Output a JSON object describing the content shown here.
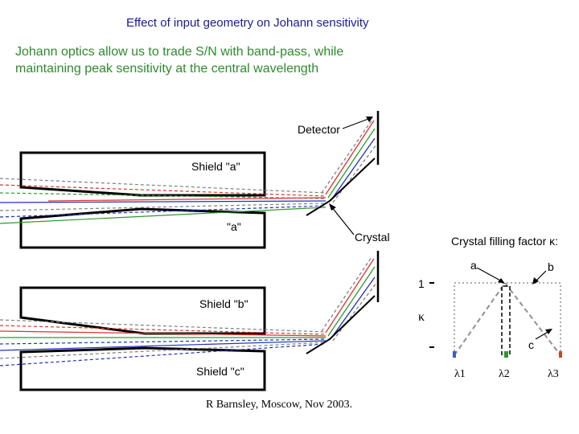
{
  "title": "Effect of input geometry on Johann sensitivity",
  "subtitle": [
    "Johann optics allow us to trade S/N with band-pass, while",
    "maintaining peak sensitivity at the central wavelength"
  ],
  "labels": {
    "detector": "Detector",
    "shield_a": "Shield \"a\"",
    "a_quote": "\"a\"",
    "crystal": "Crystal",
    "shield_b": "Shield \"b\"",
    "shield_c": "Shield \"c\""
  },
  "inset": {
    "title": "Crystal filling factor κ:",
    "curve_a": "a",
    "curve_b": "b",
    "curve_c": "c",
    "y_tick": "1",
    "y_label": "κ",
    "lambda1": "λ1",
    "lambda2": "λ2",
    "lambda3": "λ3"
  },
  "credit": "R Barnsley, Moscow, Nov 2003.",
  "colors": {
    "title": "#1a1a99",
    "subtitle": "#2e8b2e",
    "ray_red": "#e03030",
    "ray_green": "#2a9a2a",
    "ray_blue": "#2030c0",
    "ray_grey": "#808080",
    "lambda1_marker": "#3a5fc0",
    "lambda2_marker": "#2a9a2a",
    "lambda3_marker": "#c04a2a"
  }
}
